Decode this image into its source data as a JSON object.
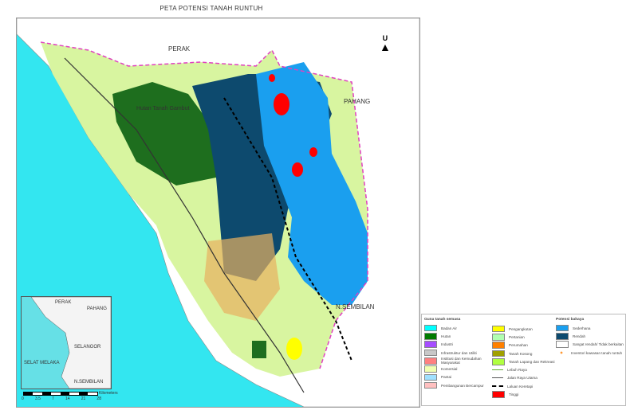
{
  "title": "PETA POTENSI TANAH RUNTUH",
  "north_label": "U",
  "map_labels": {
    "perak": "PERAK",
    "pahang": "PAHANG",
    "n_sembilan": "N.SEMBILAN",
    "forest": "Hutan Tanah Gambut"
  },
  "inset": {
    "labels": [
      "PERAK",
      "PAHANG",
      "SELANGOR",
      "SELAT MELAKA",
      "N.SEMBILAN"
    ]
  },
  "scale": {
    "ticks": [
      "0",
      "3.5",
      "7",
      "14",
      "21",
      "28"
    ],
    "unit": "Kilometers"
  },
  "legend": {
    "landuse_title": "Guna tanah semasa",
    "landuse_col1": [
      {
        "label": "Badan Air",
        "color": "#00ffff"
      },
      {
        "label": "Hutan",
        "color": "#007a00"
      },
      {
        "label": "Industri",
        "color": "#a64dff"
      },
      {
        "label": "Infrastruktur dan Utiliti",
        "color": "#c8c8c8"
      },
      {
        "label": "Institusi dan Kemudahan Masyarakat",
        "color": "#ff8080"
      },
      {
        "label": "Komersial",
        "color": "#f0ffb0"
      },
      {
        "label": "Pantai",
        "color": "#a0e0ff"
      },
      {
        "label": "Pembangunan Bercampur",
        "color": "#ffc0c0"
      }
    ],
    "landuse_col2": [
      {
        "label": "Pengangkutan",
        "color": "#ffff00"
      },
      {
        "label": "Pertanian",
        "color": "#b0ffb0"
      },
      {
        "label": "Perumahan",
        "color": "#ff8000"
      },
      {
        "label": "Tanah Kosong",
        "color": "#a0a000"
      },
      {
        "label": "Tanah Lapang dan Rekreasi",
        "color": "#b0ff40"
      }
    ],
    "lines": [
      {
        "label": "Lebuh Raya",
        "color": "#60b030"
      },
      {
        "label": "Jalan Raya Utama",
        "color": "#555555"
      },
      {
        "label": "Laluan Keretapi",
        "color": "#000000"
      }
    ],
    "high": {
      "label": "Tinggi",
      "color": "#ff0000"
    },
    "hazard_title": "Potensi bahaya",
    "hazard": [
      {
        "label": "Sederhana",
        "color": "#1a9fef"
      },
      {
        "label": "Rendah",
        "color": "#0d4a6e"
      },
      {
        "label": "Sangat rendah/ Tidak berkaitan",
        "color": "#ffffff"
      }
    ],
    "inventory": {
      "label": "Inventori kawasan tanah runtuh",
      "color": "#ff9933"
    }
  }
}
